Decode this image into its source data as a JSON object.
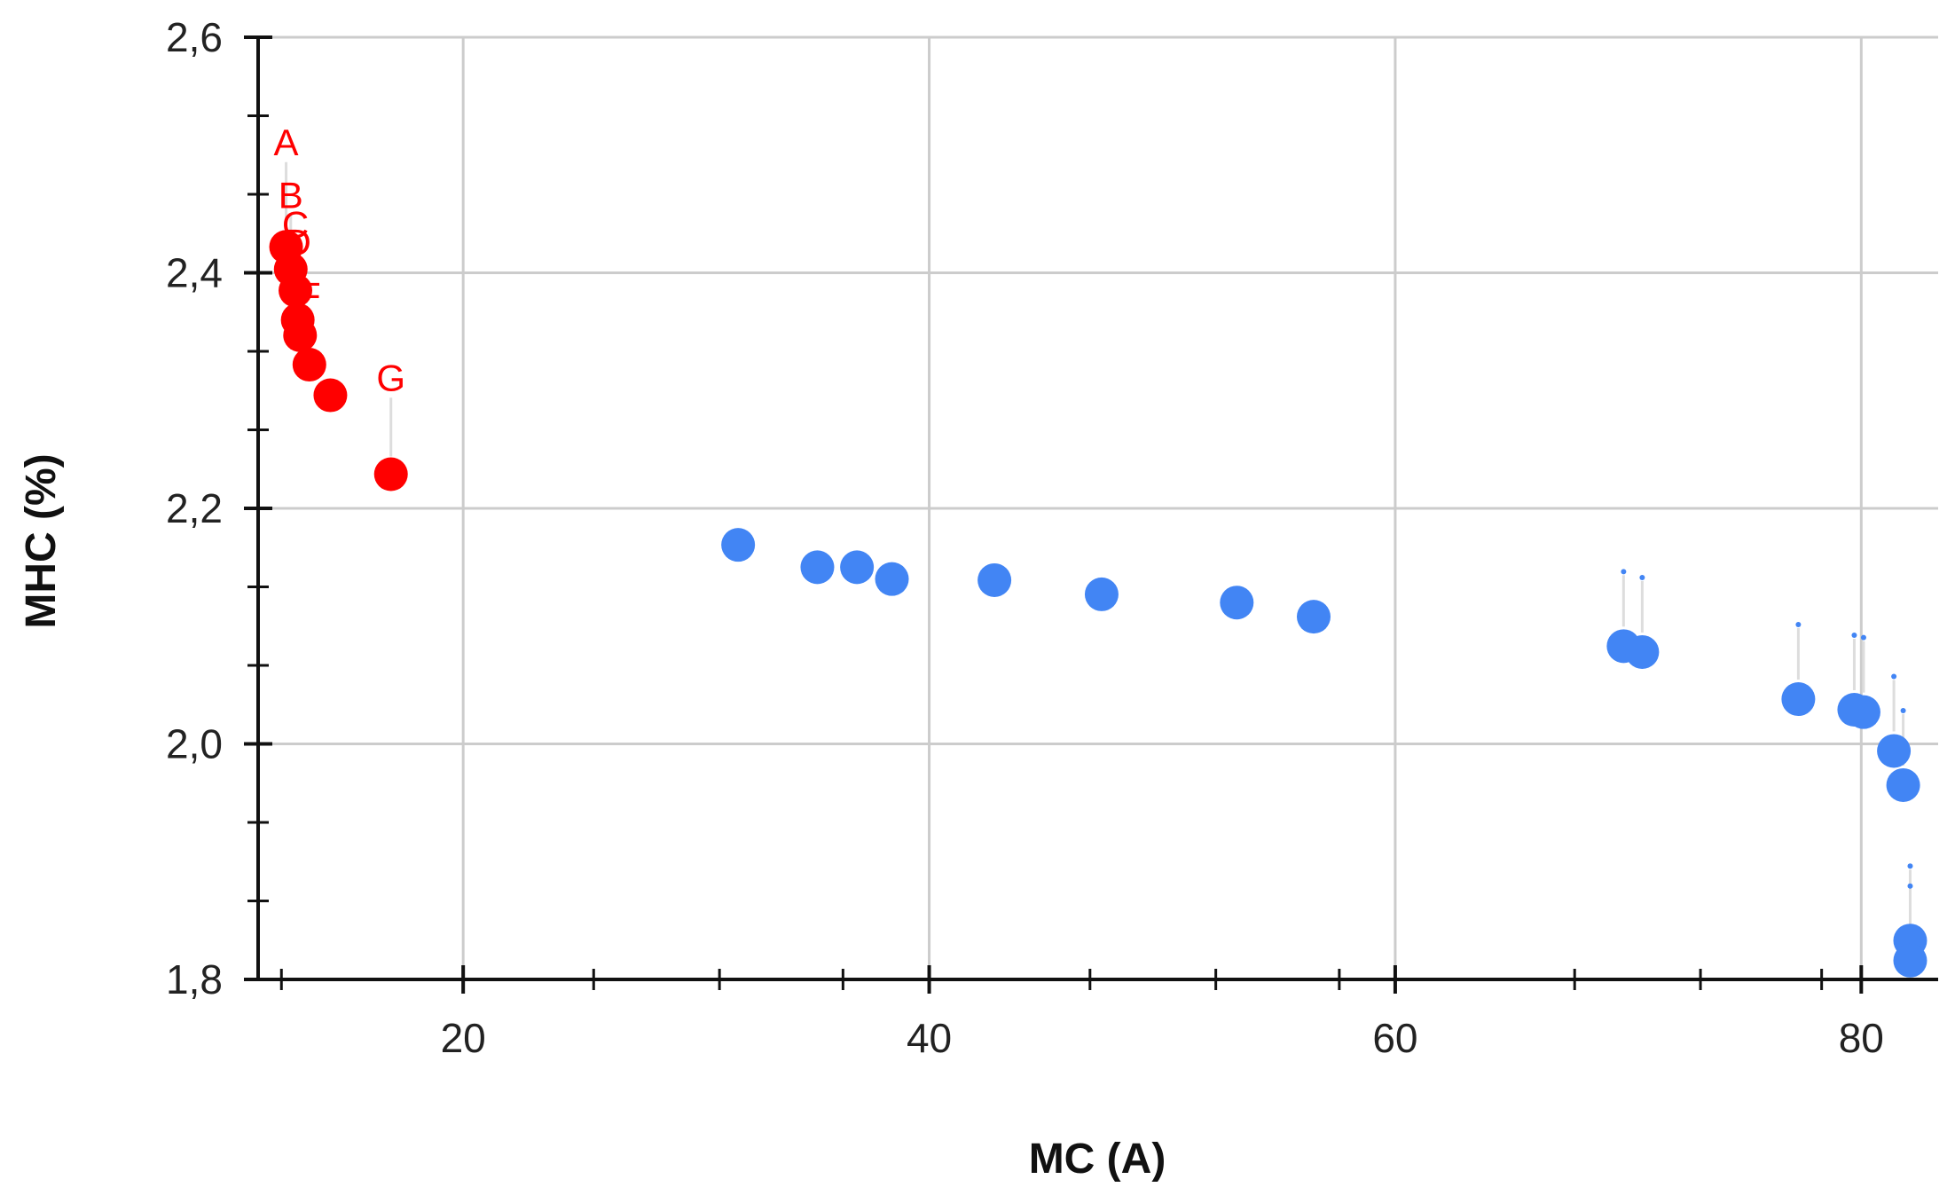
{
  "chart_data": {
    "type": "scatter",
    "xlabel": "MC (A)",
    "ylabel": "MHC (%)",
    "xlim": [
      11.2,
      83.3
    ],
    "ylim": [
      1.8,
      2.6
    ],
    "x_ticks": [
      20,
      40,
      60,
      80
    ],
    "x_tick_labels": [
      "20",
      "40",
      "60",
      "80"
    ],
    "y_ticks": [
      1.8,
      2.0,
      2.2,
      2.4,
      2.6
    ],
    "y_tick_labels": [
      "1,8",
      "2,0",
      "2,2",
      "2,4",
      "2,6"
    ],
    "grid": true,
    "legend": "none",
    "colors": {
      "highlighted": "#ff0000",
      "other": "#4285f4",
      "grid": "#cccccc",
      "axis": "#111111"
    },
    "series": [
      {
        "color": "#ff0000",
        "points": [
          {
            "label": "A",
            "x": 12.4,
            "y": 2.422,
            "label_y": 2.5
          },
          {
            "label": "B",
            "x": 12.6,
            "y": 2.403,
            "label_y": 2.455
          },
          {
            "label": "C",
            "x": 12.8,
            "y": 2.385,
            "label_y": 2.43
          },
          {
            "label": "D",
            "x": 12.9,
            "y": 2.36,
            "label_y": 2.415
          },
          {
            "label": "E",
            "x": 13.0,
            "y": 2.347,
            "label_y": 2.335
          },
          {
            "label": "F",
            "x": 13.4,
            "y": 2.322,
            "label_y": 2.37
          },
          {
            "label": "",
            "x": 14.3,
            "y": 2.296
          },
          {
            "label": "G",
            "x": 16.9,
            "y": 2.229,
            "label_y": 2.3
          }
        ]
      },
      {
        "color": "#4285f4",
        "points": [
          {
            "x": 31.8,
            "y": 2.169
          },
          {
            "x": 35.2,
            "y": 2.15
          },
          {
            "x": 36.9,
            "y": 2.15
          },
          {
            "x": 38.4,
            "y": 2.14
          },
          {
            "x": 42.8,
            "y": 2.139
          },
          {
            "x": 47.4,
            "y": 2.127
          },
          {
            "x": 53.2,
            "y": 2.12
          },
          {
            "x": 56.5,
            "y": 2.108
          },
          {
            "x": 69.8,
            "y": 2.083
          },
          {
            "x": 70.6,
            "y": 2.078
          },
          {
            "x": 77.3,
            "y": 2.038
          },
          {
            "x": 79.7,
            "y": 2.029
          },
          {
            "x": 80.1,
            "y": 2.027
          },
          {
            "x": 81.4,
            "y": 1.994
          },
          {
            "x": 81.8,
            "y": 1.965
          },
          {
            "x": 82.1,
            "y": 1.833
          },
          {
            "x": 82.1,
            "y": 1.816
          }
        ]
      }
    ]
  }
}
